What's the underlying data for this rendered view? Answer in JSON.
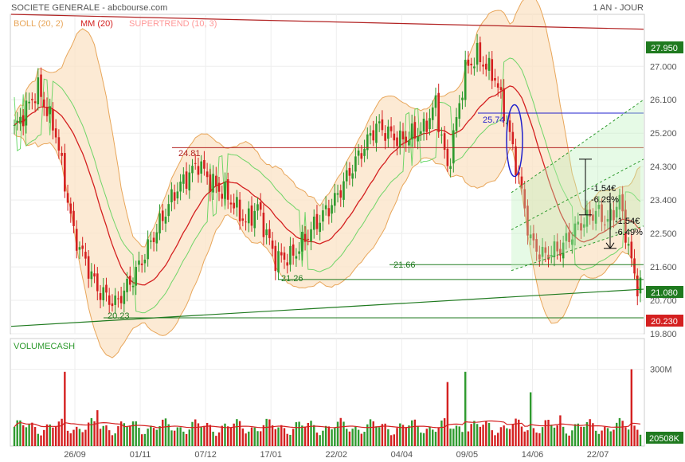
{
  "header": {
    "title": "SOCIETE GENERALE - abcbourse.com",
    "period": "1 AN - JOUR"
  },
  "legend": {
    "boll": "BOLL (20, 2)",
    "mm": "MM (20)",
    "supertrend": "SUPERTREND (10, 3)"
  },
  "colors": {
    "boll": "#e8a65a",
    "boll_fill": "#fbe3c6",
    "mm": "#d42020",
    "supertrend": "#ffb3b3",
    "supertrend_up": "#4ccf4c",
    "up_candle": "#2e9a2e",
    "down_candle": "#d42020",
    "level_line": "#1f7a1f",
    "resistance": "#b22222",
    "channel": "#2e9a2e",
    "ellipse": "#2222cc"
  },
  "volume_panel": {
    "label": "VOLUMECASH"
  },
  "annotations": {
    "levels": [
      "24.81",
      "21.66",
      "21.26",
      "20.23"
    ],
    "ellipse_label": "25.74",
    "move1_value": "-1.54€",
    "move1_pct": "-6.29%",
    "move2_value": "-1.54€",
    "move2_pct": "-6.49%"
  },
  "price_badges": {
    "top": "27.950",
    "last": "21.080",
    "low": "20.230",
    "volume": "20508K"
  },
  "chart_data": {
    "type": "candlestick",
    "price_axis": {
      "ticks": [
        "27.000",
        "26.100",
        "25.200",
        "24.300",
        "23.400",
        "22.500",
        "21.600",
        "20.700",
        "19.800"
      ],
      "ylim": [
        19.8,
        28.4
      ]
    },
    "volume_axis": {
      "ticks": [
        "300M"
      ],
      "ylim": [
        0,
        420
      ]
    },
    "x_ticks": [
      "26/09",
      "01/11",
      "07/12",
      "17/01",
      "22/02",
      "04/04",
      "09/05",
      "14/06",
      "22/07"
    ],
    "close_anchors": [
      [
        0,
        25.3
      ],
      [
        8,
        26.4
      ],
      [
        14,
        25.2
      ],
      [
        20,
        22.5
      ],
      [
        28,
        21.0
      ],
      [
        34,
        20.6
      ],
      [
        40,
        21.3
      ],
      [
        48,
        22.6
      ],
      [
        54,
        23.6
      ],
      [
        62,
        24.4
      ],
      [
        66,
        23.9
      ],
      [
        72,
        23.5
      ],
      [
        78,
        22.8
      ],
      [
        82,
        23.2
      ],
      [
        88,
        21.8
      ],
      [
        94,
        21.9
      ],
      [
        100,
        22.6
      ],
      [
        108,
        23.4
      ],
      [
        114,
        24.3
      ],
      [
        122,
        25.4
      ],
      [
        130,
        25.0
      ],
      [
        138,
        25.3
      ],
      [
        142,
        26.0
      ],
      [
        146,
        24.2
      ],
      [
        152,
        26.9
      ],
      [
        156,
        27.3
      ],
      [
        162,
        26.7
      ],
      [
        166,
        25.5
      ],
      [
        170,
        24.0
      ],
      [
        174,
        22.3
      ],
      [
        178,
        21.9
      ],
      [
        184,
        22.1
      ],
      [
        190,
        22.7
      ],
      [
        196,
        23.1
      ],
      [
        200,
        22.8
      ],
      [
        204,
        23.4
      ],
      [
        208,
        21.7
      ],
      [
        210,
        21.1
      ]
    ],
    "volume_spikes": [
      [
        17,
        290
      ],
      [
        28,
        140
      ],
      [
        146,
        250
      ],
      [
        152,
        290
      ],
      [
        174,
        210
      ],
      [
        184,
        120
      ],
      [
        208,
        300
      ]
    ],
    "base_volume_range": [
      40,
      110
    ]
  }
}
